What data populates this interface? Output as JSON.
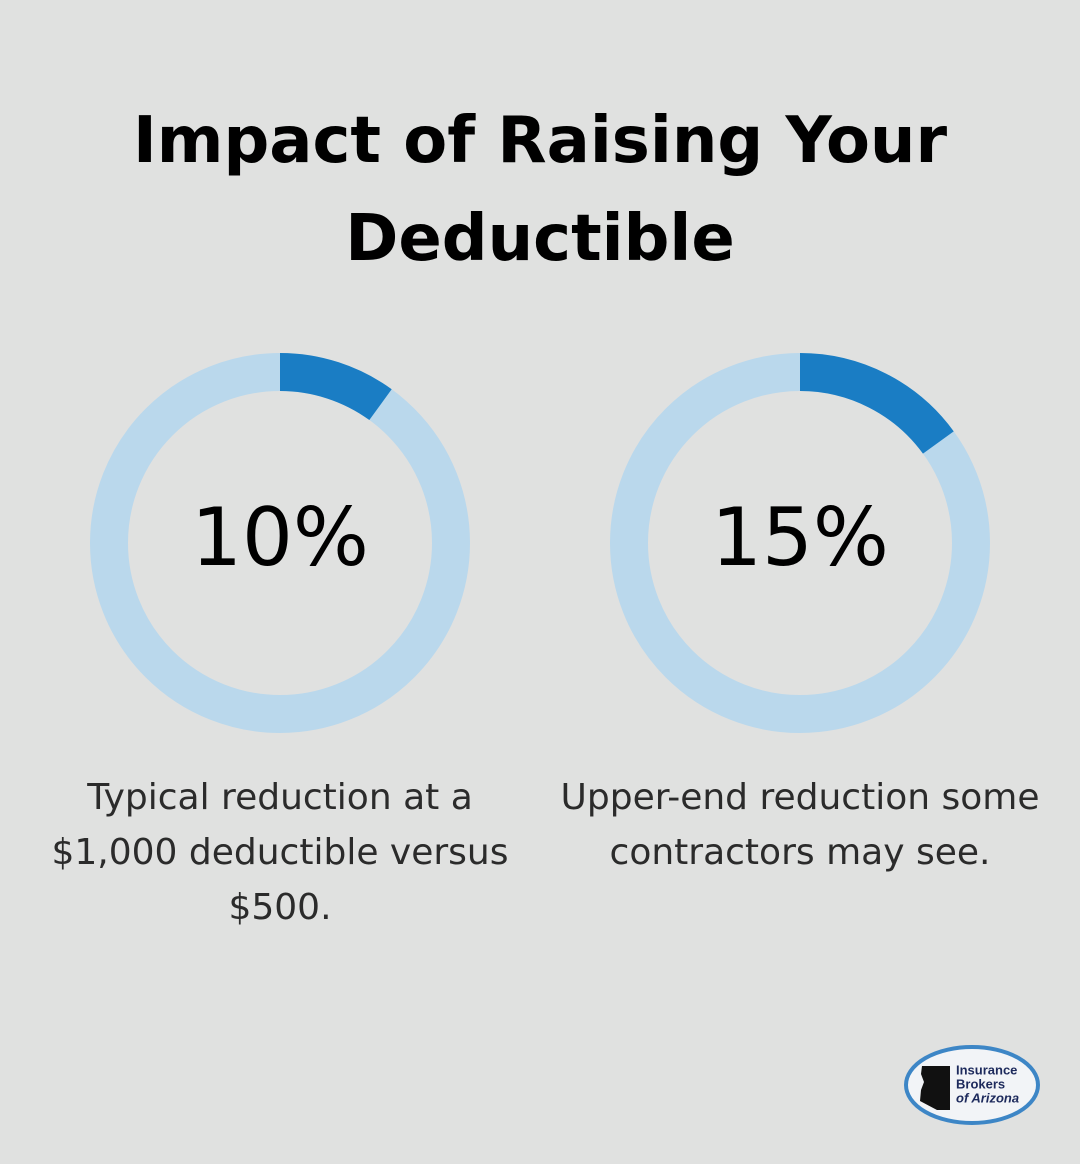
{
  "title": "Impact of Raising Your Deductible",
  "chart_data": [
    {
      "type": "donut",
      "values": [
        10
      ],
      "value_labels": [
        "10%"
      ],
      "caption": "Typical reduction at a $1,000 deductible versus $500.",
      "color": "#1a7dc4",
      "track_color": "#bad8ec"
    },
    {
      "type": "donut",
      "values": [
        15
      ],
      "value_labels": [
        "15%"
      ],
      "caption": "Upper-end reduction some contractors may see.",
      "color": "#1a7dc4",
      "track_color": "#bad8ec"
    }
  ],
  "logo": {
    "lines": [
      "Insurance",
      "Brokers",
      "of Arizona"
    ]
  }
}
